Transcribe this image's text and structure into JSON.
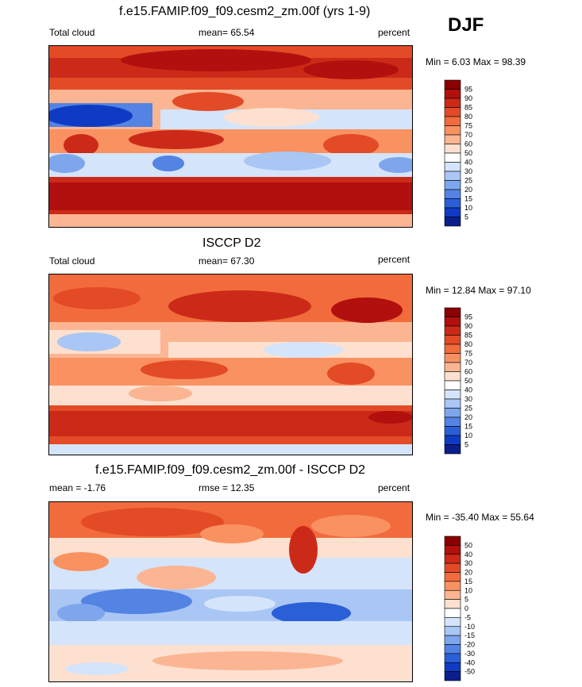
{
  "season": "DJF",
  "panels": [
    {
      "title": "f.e15.FAMIP.f09_f09.cesm2_zm.00f (yrs 1-9)",
      "left_label": "Total cloud",
      "stat_label": "mean=  65.54",
      "units": "percent",
      "minmax": "Min =   6.03 Max =  98.39",
      "levels": [
        "95",
        "90",
        "85",
        "80",
        "75",
        "70",
        "60",
        "50",
        "40",
        "30",
        "25",
        "20",
        "15",
        "10",
        "5"
      ],
      "colors": [
        "#8b0000",
        "#b2100e",
        "#cc2a18",
        "#e34a26",
        "#f26b3c",
        "#f99161",
        "#fbb592",
        "#fde0cf",
        "#ffffff",
        "#d4e4fb",
        "#a9c6f4",
        "#7ea6ec",
        "#5383e3",
        "#2a5fd8",
        "#0f3bc4",
        "#0a1f8c"
      ],
      "chart_data": {
        "type": "heatmap",
        "variable": "Total cloud",
        "units": "percent",
        "season": "DJF",
        "mean": 65.54,
        "min": 6.03,
        "max": 98.39,
        "contour_levels": [
          5,
          10,
          15,
          20,
          25,
          30,
          40,
          50,
          60,
          70,
          75,
          80,
          85,
          90,
          95
        ]
      }
    },
    {
      "title": "ISCCP D2",
      "left_label": "Total cloud",
      "stat_label": "mean=  67.30",
      "units": "percent",
      "minmax": "Min =  12.84 Max =  97.10",
      "levels": [
        "95",
        "90",
        "85",
        "80",
        "75",
        "70",
        "60",
        "50",
        "40",
        "30",
        "25",
        "20",
        "15",
        "10",
        "5"
      ],
      "colors": [
        "#8b0000",
        "#b2100e",
        "#cc2a18",
        "#e34a26",
        "#f26b3c",
        "#f99161",
        "#fbb592",
        "#fde0cf",
        "#ffffff",
        "#d4e4fb",
        "#a9c6f4",
        "#7ea6ec",
        "#5383e3",
        "#2a5fd8",
        "#0f3bc4",
        "#0a1f8c"
      ],
      "chart_data": {
        "type": "heatmap",
        "variable": "Total cloud",
        "units": "percent",
        "season": "DJF",
        "mean": 67.3,
        "min": 12.84,
        "max": 97.1,
        "contour_levels": [
          5,
          10,
          15,
          20,
          25,
          30,
          40,
          50,
          60,
          70,
          75,
          80,
          85,
          90,
          95
        ]
      }
    },
    {
      "title": "f.e15.FAMIP.f09_f09.cesm2_zm.00f - ISCCP D2",
      "left_label": "mean =  -1.76",
      "stat_label": "rmse =  12.35",
      "units": "percent",
      "minmax": "Min = -35.40 Max =  55.64",
      "levels": [
        "50",
        "40",
        "30",
        "20",
        "15",
        "10",
        "5",
        "0",
        "-5",
        "-10",
        "-15",
        "-20",
        "-30",
        "-40",
        "-50"
      ],
      "colors": [
        "#8b0000",
        "#b2100e",
        "#cc2a18",
        "#e34a26",
        "#f26b3c",
        "#f99161",
        "#fbb592",
        "#fde0cf",
        "#ffffff",
        "#d4e4fb",
        "#a9c6f4",
        "#7ea6ec",
        "#5383e3",
        "#2a5fd8",
        "#0f3bc4",
        "#0a1f8c"
      ],
      "chart_data": {
        "type": "heatmap",
        "variable": "Total cloud difference (model - obs)",
        "units": "percent",
        "season": "DJF",
        "mean": -1.76,
        "rmse": 12.35,
        "min": -35.4,
        "max": 55.64,
        "contour_levels": [
          -50,
          -40,
          -30,
          -20,
          -15,
          -10,
          -5,
          0,
          5,
          10,
          15,
          20,
          30,
          40,
          50
        ]
      }
    }
  ]
}
